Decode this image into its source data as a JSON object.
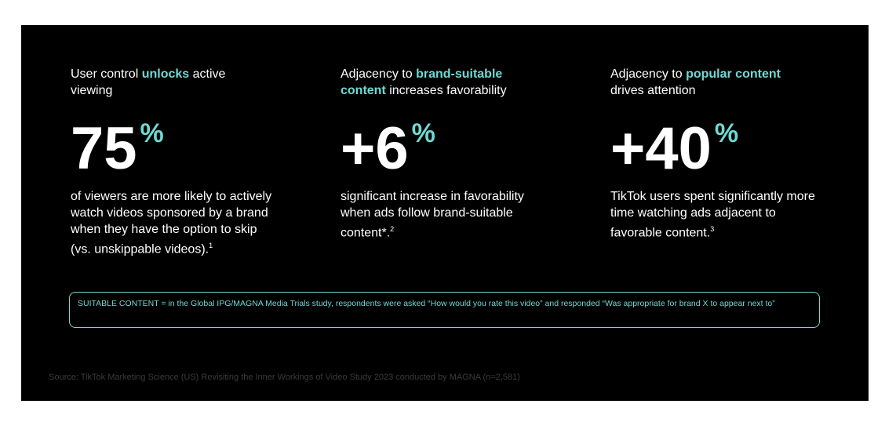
{
  "columns": [
    {
      "heading": {
        "before": "User control ",
        "highlight": "unlocks",
        "after": " active viewing"
      },
      "stat": {
        "number": "75",
        "unit": "%"
      },
      "body": {
        "text": "of viewers are more likely to actively watch videos sponsored by a brand when they have the option to skip (vs. unskippable videos).",
        "footnote": "1"
      }
    },
    {
      "heading": {
        "before": "Adjacency to ",
        "highlight": "brand-suitable content",
        "after": " increases favorability"
      },
      "stat": {
        "number": "+6",
        "unit": "%"
      },
      "body": {
        "text": "significant increase in favorability when ads follow brand-suitable content*.",
        "footnote": "2"
      }
    },
    {
      "heading": {
        "before": "Adjacency to ",
        "highlight": "popular content",
        "after": " drives attention"
      },
      "stat": {
        "number": "+40",
        "unit": "%"
      },
      "body": {
        "text": "TikTok users spent significantly more time watching ads adjacent to favorable content.",
        "footnote": "3"
      }
    }
  ],
  "note": "SUITABLE CONTENT = in the Global IPG/MAGNA Media Trials study, respondents were asked “How would you rate this video” and responded “Was appropriate for brand X to appear next to”",
  "source": "Source: TikTok Marketing Science (US) Revisiting the Inner Workings of Video Study 2023 conducted by MAGNA (n=2,581)"
}
